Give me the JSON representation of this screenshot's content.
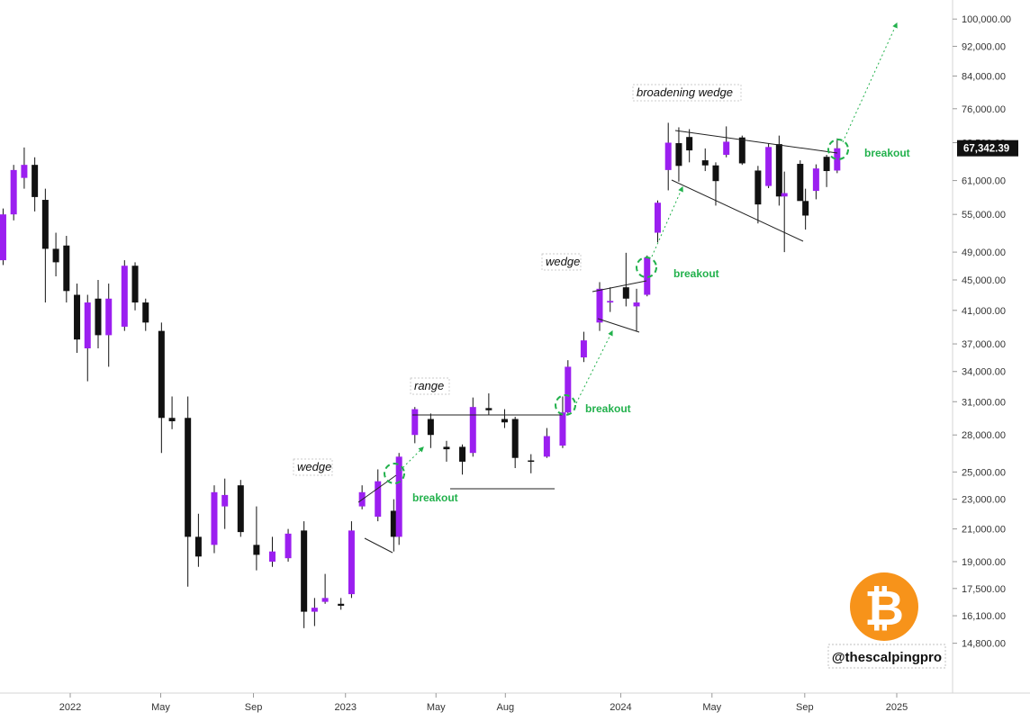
{
  "chart_data": {
    "type": "candlestick",
    "title": "",
    "xlabel": "",
    "ylabel": "",
    "x_range": [
      "2021-10",
      "2025-03"
    ],
    "y_range": [
      13500,
      102000
    ],
    "y_scale": "log",
    "y_ticks": [
      {
        "value": 100000,
        "label": "100,000.00"
      },
      {
        "value": 92000,
        "label": "92,000.00"
      },
      {
        "value": 84000,
        "label": "84,000.00"
      },
      {
        "value": 76000,
        "label": "76,000.00"
      },
      {
        "value": 68500,
        "label": "68,500.00"
      },
      {
        "value": 61000,
        "label": "61,000.00"
      },
      {
        "value": 55000,
        "label": "55,000.00"
      },
      {
        "value": 49000,
        "label": "49,000.00"
      },
      {
        "value": 45000,
        "label": "45,000.00"
      },
      {
        "value": 41000,
        "label": "41,000.00"
      },
      {
        "value": 37000,
        "label": "37,000.00"
      },
      {
        "value": 34000,
        "label": "34,000.00"
      },
      {
        "value": 31000,
        "label": "31,000.00"
      },
      {
        "value": 28000,
        "label": "28,000.00"
      },
      {
        "value": 25000,
        "label": "25,000.00"
      },
      {
        "value": 23000,
        "label": "23,000.00"
      },
      {
        "value": 21000,
        "label": "21,000.00"
      },
      {
        "value": 19000,
        "label": "19,000.00"
      },
      {
        "value": 17500,
        "label": "17,500.00"
      },
      {
        "value": 16100,
        "label": "16,100.00"
      },
      {
        "value": 14800,
        "label": "14,800.00"
      }
    ],
    "x_ticks": [
      {
        "date": "2022-01-01",
        "label": "2022"
      },
      {
        "date": "2022-05-01",
        "label": "May"
      },
      {
        "date": "2022-09-01",
        "label": "Sep"
      },
      {
        "date": "2023-01-01",
        "label": "2023"
      },
      {
        "date": "2023-05-01",
        "label": "May"
      },
      {
        "date": "2023-08-01",
        "label": "Aug"
      },
      {
        "date": "2024-01-01",
        "label": "2024"
      },
      {
        "date": "2024-05-01",
        "label": "May"
      },
      {
        "date": "2024-09-01",
        "label": "Sep"
      },
      {
        "date": "2025-01-01",
        "label": "2025"
      }
    ],
    "current_price": {
      "value": 67342.39,
      "label": "67,342.39"
    },
    "colors": {
      "bull": "#9b1ff0",
      "bear": "#111111",
      "breakout": "#22b14c",
      "line": "#222222"
    },
    "candle_interval": "weekly",
    "candles": [
      {
        "d": "2021-10-04",
        "o": 47800,
        "h": 56000,
        "l": 47100,
        "c": 55000
      },
      {
        "d": "2021-10-18",
        "o": 55000,
        "h": 64000,
        "l": 54000,
        "c": 63000
      },
      {
        "d": "2021-11-01",
        "o": 61500,
        "h": 67500,
        "l": 59500,
        "c": 64000
      },
      {
        "d": "2021-11-15",
        "o": 64000,
        "h": 65500,
        "l": 55500,
        "c": 58000
      },
      {
        "d": "2021-11-29",
        "o": 57500,
        "h": 59500,
        "l": 42000,
        "c": 49500
      },
      {
        "d": "2021-12-13",
        "o": 49500,
        "h": 52000,
        "l": 45500,
        "c": 47500
      },
      {
        "d": "2021-12-27",
        "o": 50000,
        "h": 51500,
        "l": 42000,
        "c": 43500
      },
      {
        "d": "2022-01-10",
        "o": 43000,
        "h": 44500,
        "l": 36000,
        "c": 37500
      },
      {
        "d": "2022-01-24",
        "o": 36500,
        "h": 43000,
        "l": 33000,
        "c": 42000
      },
      {
        "d": "2022-02-07",
        "o": 42500,
        "h": 45000,
        "l": 36500,
        "c": 38000
      },
      {
        "d": "2022-02-21",
        "o": 38000,
        "h": 44500,
        "l": 34500,
        "c": 42500
      },
      {
        "d": "2022-03-14",
        "o": 39000,
        "h": 47800,
        "l": 38500,
        "c": 47000
      },
      {
        "d": "2022-03-28",
        "o": 47000,
        "h": 47500,
        "l": 41000,
        "c": 42000
      },
      {
        "d": "2022-04-11",
        "o": 42000,
        "h": 42500,
        "l": 38500,
        "c": 39500
      },
      {
        "d": "2022-05-02",
        "o": 38500,
        "h": 39500,
        "l": 26500,
        "c": 29500
      },
      {
        "d": "2022-05-16",
        "o": 29500,
        "h": 31500,
        "l": 28500,
        "c": 29200
      },
      {
        "d": "2022-06-06",
        "o": 29500,
        "h": 31500,
        "l": 17600,
        "c": 20500
      },
      {
        "d": "2022-06-20",
        "o": 20500,
        "h": 22000,
        "l": 18700,
        "c": 19300
      },
      {
        "d": "2022-07-11",
        "o": 20000,
        "h": 24000,
        "l": 19500,
        "c": 23500
      },
      {
        "d": "2022-07-25",
        "o": 22500,
        "h": 24500,
        "l": 21000,
        "c": 23300
      },
      {
        "d": "2022-08-15",
        "o": 24000,
        "h": 24400,
        "l": 20500,
        "c": 20800
      },
      {
        "d": "2022-09-05",
        "o": 20000,
        "h": 22500,
        "l": 18500,
        "c": 19400
      },
      {
        "d": "2022-09-26",
        "o": 19000,
        "h": 20500,
        "l": 18700,
        "c": 19600
      },
      {
        "d": "2022-10-17",
        "o": 19200,
        "h": 21000,
        "l": 19000,
        "c": 20700
      },
      {
        "d": "2022-11-07",
        "o": 20900,
        "h": 21500,
        "l": 15500,
        "c": 16300
      },
      {
        "d": "2022-11-21",
        "o": 16300,
        "h": 17000,
        "l": 15600,
        "c": 16500
      },
      {
        "d": "2022-12-05",
        "o": 16800,
        "h": 18300,
        "l": 16700,
        "c": 17000
      },
      {
        "d": "2022-12-26",
        "o": 16700,
        "h": 17000,
        "l": 16400,
        "c": 16600
      },
      {
        "d": "2023-01-09",
        "o": 17200,
        "h": 21500,
        "l": 17000,
        "c": 20900
      },
      {
        "d": "2023-01-23",
        "o": 22500,
        "h": 24000,
        "l": 22300,
        "c": 23500
      },
      {
        "d": "2023-02-13",
        "o": 21800,
        "h": 25200,
        "l": 21500,
        "c": 24300
      },
      {
        "d": "2023-03-06",
        "o": 22200,
        "h": 23000,
        "l": 19600,
        "c": 20500
      },
      {
        "d": "2023-03-13",
        "o": 20500,
        "h": 26500,
        "l": 20000,
        "c": 26200
      },
      {
        "d": "2023-04-03",
        "o": 28000,
        "h": 30500,
        "l": 27300,
        "c": 30300
      },
      {
        "d": "2023-04-24",
        "o": 29400,
        "h": 29900,
        "l": 26900,
        "c": 28000
      },
      {
        "d": "2023-05-15",
        "o": 27000,
        "h": 27500,
        "l": 25800,
        "c": 26800
      },
      {
        "d": "2023-06-05",
        "o": 27000,
        "h": 27200,
        "l": 24800,
        "c": 25800
      },
      {
        "d": "2023-06-19",
        "o": 26500,
        "h": 31400,
        "l": 26200,
        "c": 30500
      },
      {
        "d": "2023-07-10",
        "o": 30400,
        "h": 31800,
        "l": 29800,
        "c": 30200
      },
      {
        "d": "2023-07-31",
        "o": 29400,
        "h": 30300,
        "l": 28600,
        "c": 29100
      },
      {
        "d": "2023-08-14",
        "o": 29400,
        "h": 29600,
        "l": 25300,
        "c": 26100
      },
      {
        "d": "2023-09-04",
        "o": 25900,
        "h": 26400,
        "l": 24900,
        "c": 25800
      },
      {
        "d": "2023-09-25",
        "o": 26200,
        "h": 28600,
        "l": 26100,
        "c": 27900
      },
      {
        "d": "2023-10-16",
        "o": 27100,
        "h": 31500,
        "l": 26900,
        "c": 30000
      },
      {
        "d": "2023-10-23",
        "o": 30000,
        "h": 35200,
        "l": 29900,
        "c": 34500
      },
      {
        "d": "2023-11-13",
        "o": 35500,
        "h": 38400,
        "l": 35000,
        "c": 37400
      },
      {
        "d": "2023-12-04",
        "o": 39500,
        "h": 44700,
        "l": 38500,
        "c": 43800
      },
      {
        "d": "2023-12-18",
        "o": 42000,
        "h": 44000,
        "l": 40800,
        "c": 42200
      },
      {
        "d": "2024-01-08",
        "o": 44000,
        "h": 48900,
        "l": 41500,
        "c": 42500
      },
      {
        "d": "2024-01-22",
        "o": 41500,
        "h": 43800,
        "l": 38500,
        "c": 42000
      },
      {
        "d": "2024-02-05",
        "o": 43000,
        "h": 48500,
        "l": 42800,
        "c": 48200
      },
      {
        "d": "2024-02-19",
        "o": 52000,
        "h": 57400,
        "l": 50500,
        "c": 57000
      },
      {
        "d": "2024-03-04",
        "o": 63000,
        "h": 72800,
        "l": 59200,
        "c": 68500
      },
      {
        "d": "2024-03-18",
        "o": 68400,
        "h": 71800,
        "l": 60800,
        "c": 63800
      },
      {
        "d": "2024-04-01",
        "o": 69700,
        "h": 71400,
        "l": 64500,
        "c": 66900
      },
      {
        "d": "2024-04-22",
        "o": 64900,
        "h": 67300,
        "l": 62800,
        "c": 63900
      },
      {
        "d": "2024-05-06",
        "o": 63900,
        "h": 64500,
        "l": 56500,
        "c": 60900
      },
      {
        "d": "2024-05-20",
        "o": 66000,
        "h": 72000,
        "l": 65500,
        "c": 68700
      },
      {
        "d": "2024-06-10",
        "o": 69600,
        "h": 70000,
        "l": 64000,
        "c": 64300
      },
      {
        "d": "2024-07-01",
        "o": 62900,
        "h": 63800,
        "l": 53500,
        "c": 56700
      },
      {
        "d": "2024-07-15",
        "o": 60000,
        "h": 68300,
        "l": 59600,
        "c": 67600
      },
      {
        "d": "2024-07-29",
        "o": 68200,
        "h": 70000,
        "l": 56500,
        "c": 58100
      },
      {
        "d": "2024-08-05",
        "o": 58100,
        "h": 62700,
        "l": 49000,
        "c": 58700
      },
      {
        "d": "2024-08-26",
        "o": 64200,
        "h": 64900,
        "l": 57400,
        "c": 57300
      },
      {
        "d": "2024-09-02",
        "o": 57300,
        "h": 59500,
        "l": 52500,
        "c": 54800
      },
      {
        "d": "2024-09-16",
        "o": 59100,
        "h": 64100,
        "l": 57600,
        "c": 63300
      },
      {
        "d": "2024-09-30",
        "o": 65600,
        "h": 66000,
        "l": 59800,
        "c": 62800
      },
      {
        "d": "2024-10-14",
        "o": 62900,
        "h": 69400,
        "l": 62400,
        "c": 67342
      }
    ],
    "annotations": [
      {
        "text": "wedge"
      },
      {
        "text": "breakout"
      },
      {
        "text": "range"
      },
      {
        "text": "breakout"
      },
      {
        "text": "wedge"
      },
      {
        "text": "breakout"
      },
      {
        "text": "broadening wedge"
      },
      {
        "text": "breakout"
      }
    ],
    "watermark": "@thescalpingpro",
    "logo": "bitcoin-icon"
  }
}
